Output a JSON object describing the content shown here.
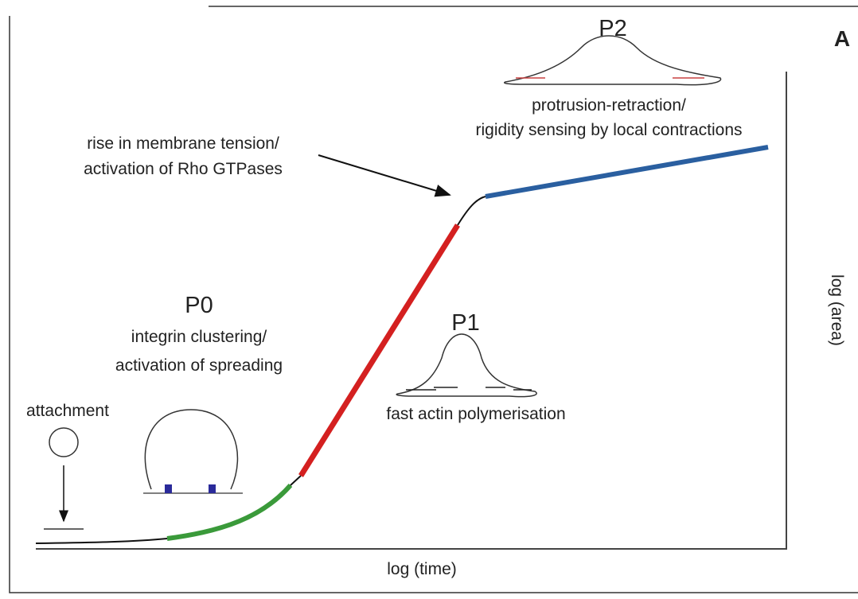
{
  "panel_label": "A",
  "axes": {
    "x_label": "log (time)",
    "y_label": "log (area)"
  },
  "attachment": {
    "label": "attachment"
  },
  "phases": [
    {
      "title": "P0",
      "lines": [
        "integrin clustering/",
        "activation of spreading"
      ]
    },
    {
      "title": "P1",
      "lines": [
        "fast actin polymerisation"
      ]
    },
    {
      "title": "P2",
      "lines": [
        "protrusion-retraction/",
        "rigidity sensing by local contractions"
      ]
    }
  ],
  "annotation": {
    "lines": [
      "rise in membrane tension/",
      "activation of Rho GTPases"
    ]
  }
}
